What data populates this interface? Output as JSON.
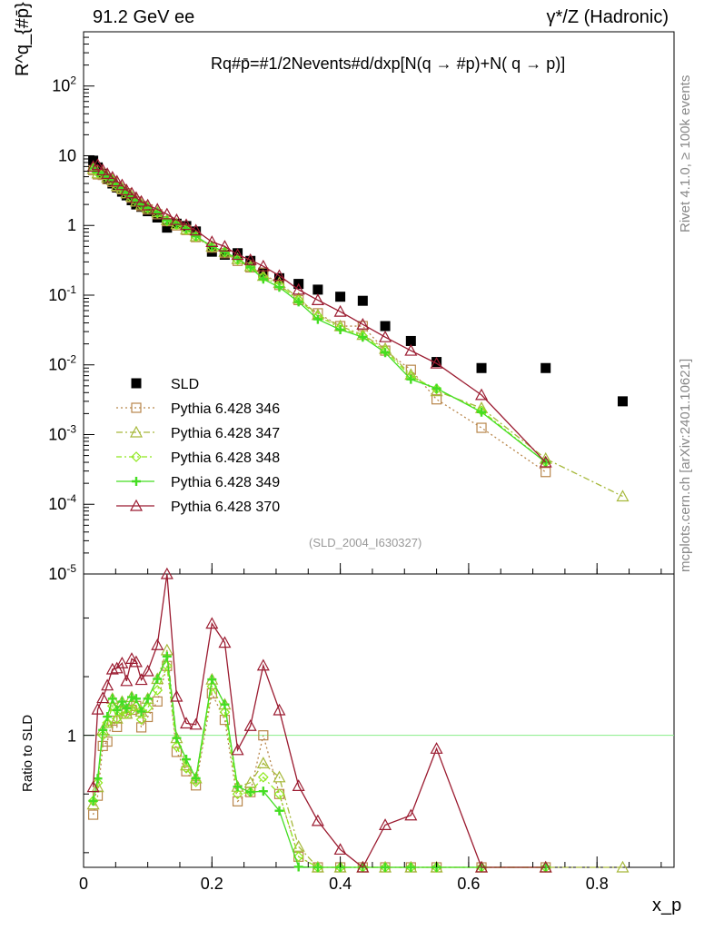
{
  "header": {
    "left_title": "91.2 GeV ee",
    "right_title": "γ*/Z (Hadronic)",
    "plot_title": "R^q_{#p̄}=#frac{1}{2N_{events}}#frac{d}{dx_{p}}[N(q → #p̄)+N(q̄ → p)]",
    "plot_title_display": "Rq#p̄=#1/2Nevents#d/dxp[N(q → #p)+N( q → p)]",
    "y_axis_label": "R^q_{#p̄}",
    "x_axis_label": "x_p",
    "ratio_label": "Ratio to SLD",
    "analysis_tag": "(SLD_2004_I630327)",
    "side_label_1": "Rivet 4.1.0, ≥ 100k events",
    "side_label_2": "mcplots.cern.ch [arXiv:2401.10621]"
  },
  "colors": {
    "SLD": "#000000",
    "p346": "#b8864b",
    "p347": "#a6b83a",
    "p348": "#8fe81e",
    "p349": "#44dd22",
    "p370": "#9b1b30",
    "ratio_ref_line": "#88ee88"
  },
  "chart_data": {
    "type": "scatter",
    "title": "R^q_{#p̄} vs x_p",
    "xlabel": "x_p",
    "ylabel": "R^q_{#p̄}",
    "xlim": [
      0,
      0.92
    ],
    "ylim": [
      1e-05,
      600
    ],
    "yscale": "log",
    "ratio_ylim": [
      0.55,
      1.55
    ],
    "x_ticks": [
      "0",
      "0.2",
      "0.4",
      "0.6",
      "0.8"
    ],
    "y_ticks": [
      "10^2",
      "10",
      "1",
      "10^-1",
      "10^-2",
      "10^-3",
      "10^-4",
      "10^-5"
    ],
    "ratio_ticks": [
      "1"
    ],
    "x": [
      0.015,
      0.022,
      0.03,
      0.037,
      0.045,
      0.052,
      0.06,
      0.067,
      0.075,
      0.082,
      0.09,
      0.1,
      0.115,
      0.13,
      0.145,
      0.16,
      0.175,
      0.2,
      0.22,
      0.24,
      0.26,
      0.28,
      0.305,
      0.335,
      0.365,
      0.4,
      0.435,
      0.47,
      0.51,
      0.55,
      0.62,
      0.72,
      0.84
    ],
    "series": [
      {
        "name": "SLD",
        "marker": "square",
        "color": "#000000",
        "values": [
          8.5,
          6.8,
          5.5,
          4.7,
          4.0,
          3.5,
          3.05,
          2.7,
          2.3,
          2.0,
          1.85,
          1.6,
          1.3,
          0.93,
          1.06,
          0.98,
          0.82,
          0.42,
          0.38,
          0.4,
          0.31,
          0.21,
          0.175,
          0.145,
          0.12,
          0.095,
          0.083,
          0.036,
          0.022,
          0.011,
          0.009,
          0.009,
          0.003
        ]
      },
      {
        "name": "Pythia 6.428 346",
        "marker": "square-open",
        "color": "#b8864b",
        "dash": "2,3",
        "values": [
          6.2,
          5.4,
          5.3,
          4.6,
          4.2,
          3.6,
          3.3,
          2.9,
          2.5,
          2.2,
          1.9,
          1.7,
          1.45,
          1.15,
          1.0,
          0.86,
          0.68,
          0.48,
          0.4,
          0.31,
          0.25,
          0.21,
          0.14,
          0.085,
          0.055,
          0.036,
          0.036,
          0.016,
          0.0085,
          0.0032,
          0.00125,
          0.00029,
          null
        ]
      },
      {
        "name": "Pythia 6.428 347",
        "marker": "triangle-open",
        "color": "#a6b83a",
        "dash": "7,3,2,3",
        "values": [
          6.5,
          5.6,
          5.6,
          4.9,
          4.5,
          3.7,
          3.4,
          2.9,
          2.6,
          2.2,
          2.0,
          1.8,
          1.55,
          1.2,
          1.05,
          0.88,
          0.7,
          0.5,
          0.42,
          0.33,
          0.26,
          0.19,
          0.15,
          0.09,
          0.052,
          0.036,
          0.027,
          0.017,
          0.0072,
          0.0042,
          0.0024,
          0.00045,
          0.00013
        ]
      },
      {
        "name": "Pythia 6.428 348",
        "marker": "diamond",
        "color": "#8fe81e",
        "dash": "6,3,2,3",
        "values": [
          6.6,
          5.7,
          5.5,
          4.9,
          4.4,
          3.7,
          3.3,
          2.9,
          2.5,
          2.2,
          1.95,
          1.75,
          1.5,
          1.15,
          1.02,
          0.87,
          0.69,
          0.49,
          0.41,
          0.32,
          0.25,
          0.18,
          0.14,
          0.085,
          0.05,
          0.034,
          0.026,
          0.016,
          0.0068,
          0.0045,
          0.0022,
          0.0004,
          null
        ]
      },
      {
        "name": "Pythia 6.428 349",
        "marker": "cross",
        "color": "#44dd22",
        "dash": "",
        "values": [
          6.6,
          5.8,
          5.6,
          5.0,
          4.5,
          3.8,
          3.4,
          2.95,
          2.6,
          2.25,
          2.0,
          1.8,
          1.55,
          1.18,
          1.05,
          0.9,
          0.7,
          0.5,
          0.42,
          0.33,
          0.25,
          0.17,
          0.13,
          0.08,
          0.045,
          0.032,
          0.025,
          0.015,
          0.0062,
          0.0046,
          0.0021,
          0.0004,
          null
        ]
      },
      {
        "name": "Pythia 6.428 370",
        "marker": "triangle-open",
        "color": "#9b1b30",
        "dash": "",
        "values": [
          7.0,
          7.4,
          6.2,
          5.5,
          4.9,
          4.3,
          3.8,
          3.2,
          2.9,
          2.5,
          2.2,
          1.95,
          1.7,
          1.45,
          1.2,
          1.02,
          0.85,
          0.58,
          0.5,
          0.38,
          0.32,
          0.26,
          0.19,
          0.12,
          0.085,
          0.058,
          0.038,
          0.025,
          0.016,
          0.0105,
          0.0037,
          0.0004,
          null
        ]
      }
    ],
    "legend": [
      "SLD",
      "Pythia 6.428 346",
      "Pythia 6.428 347",
      "Pythia 6.428 348",
      "Pythia 6.428 349",
      "Pythia 6.428 370"
    ],
    "legend_position": "bottom-left"
  }
}
